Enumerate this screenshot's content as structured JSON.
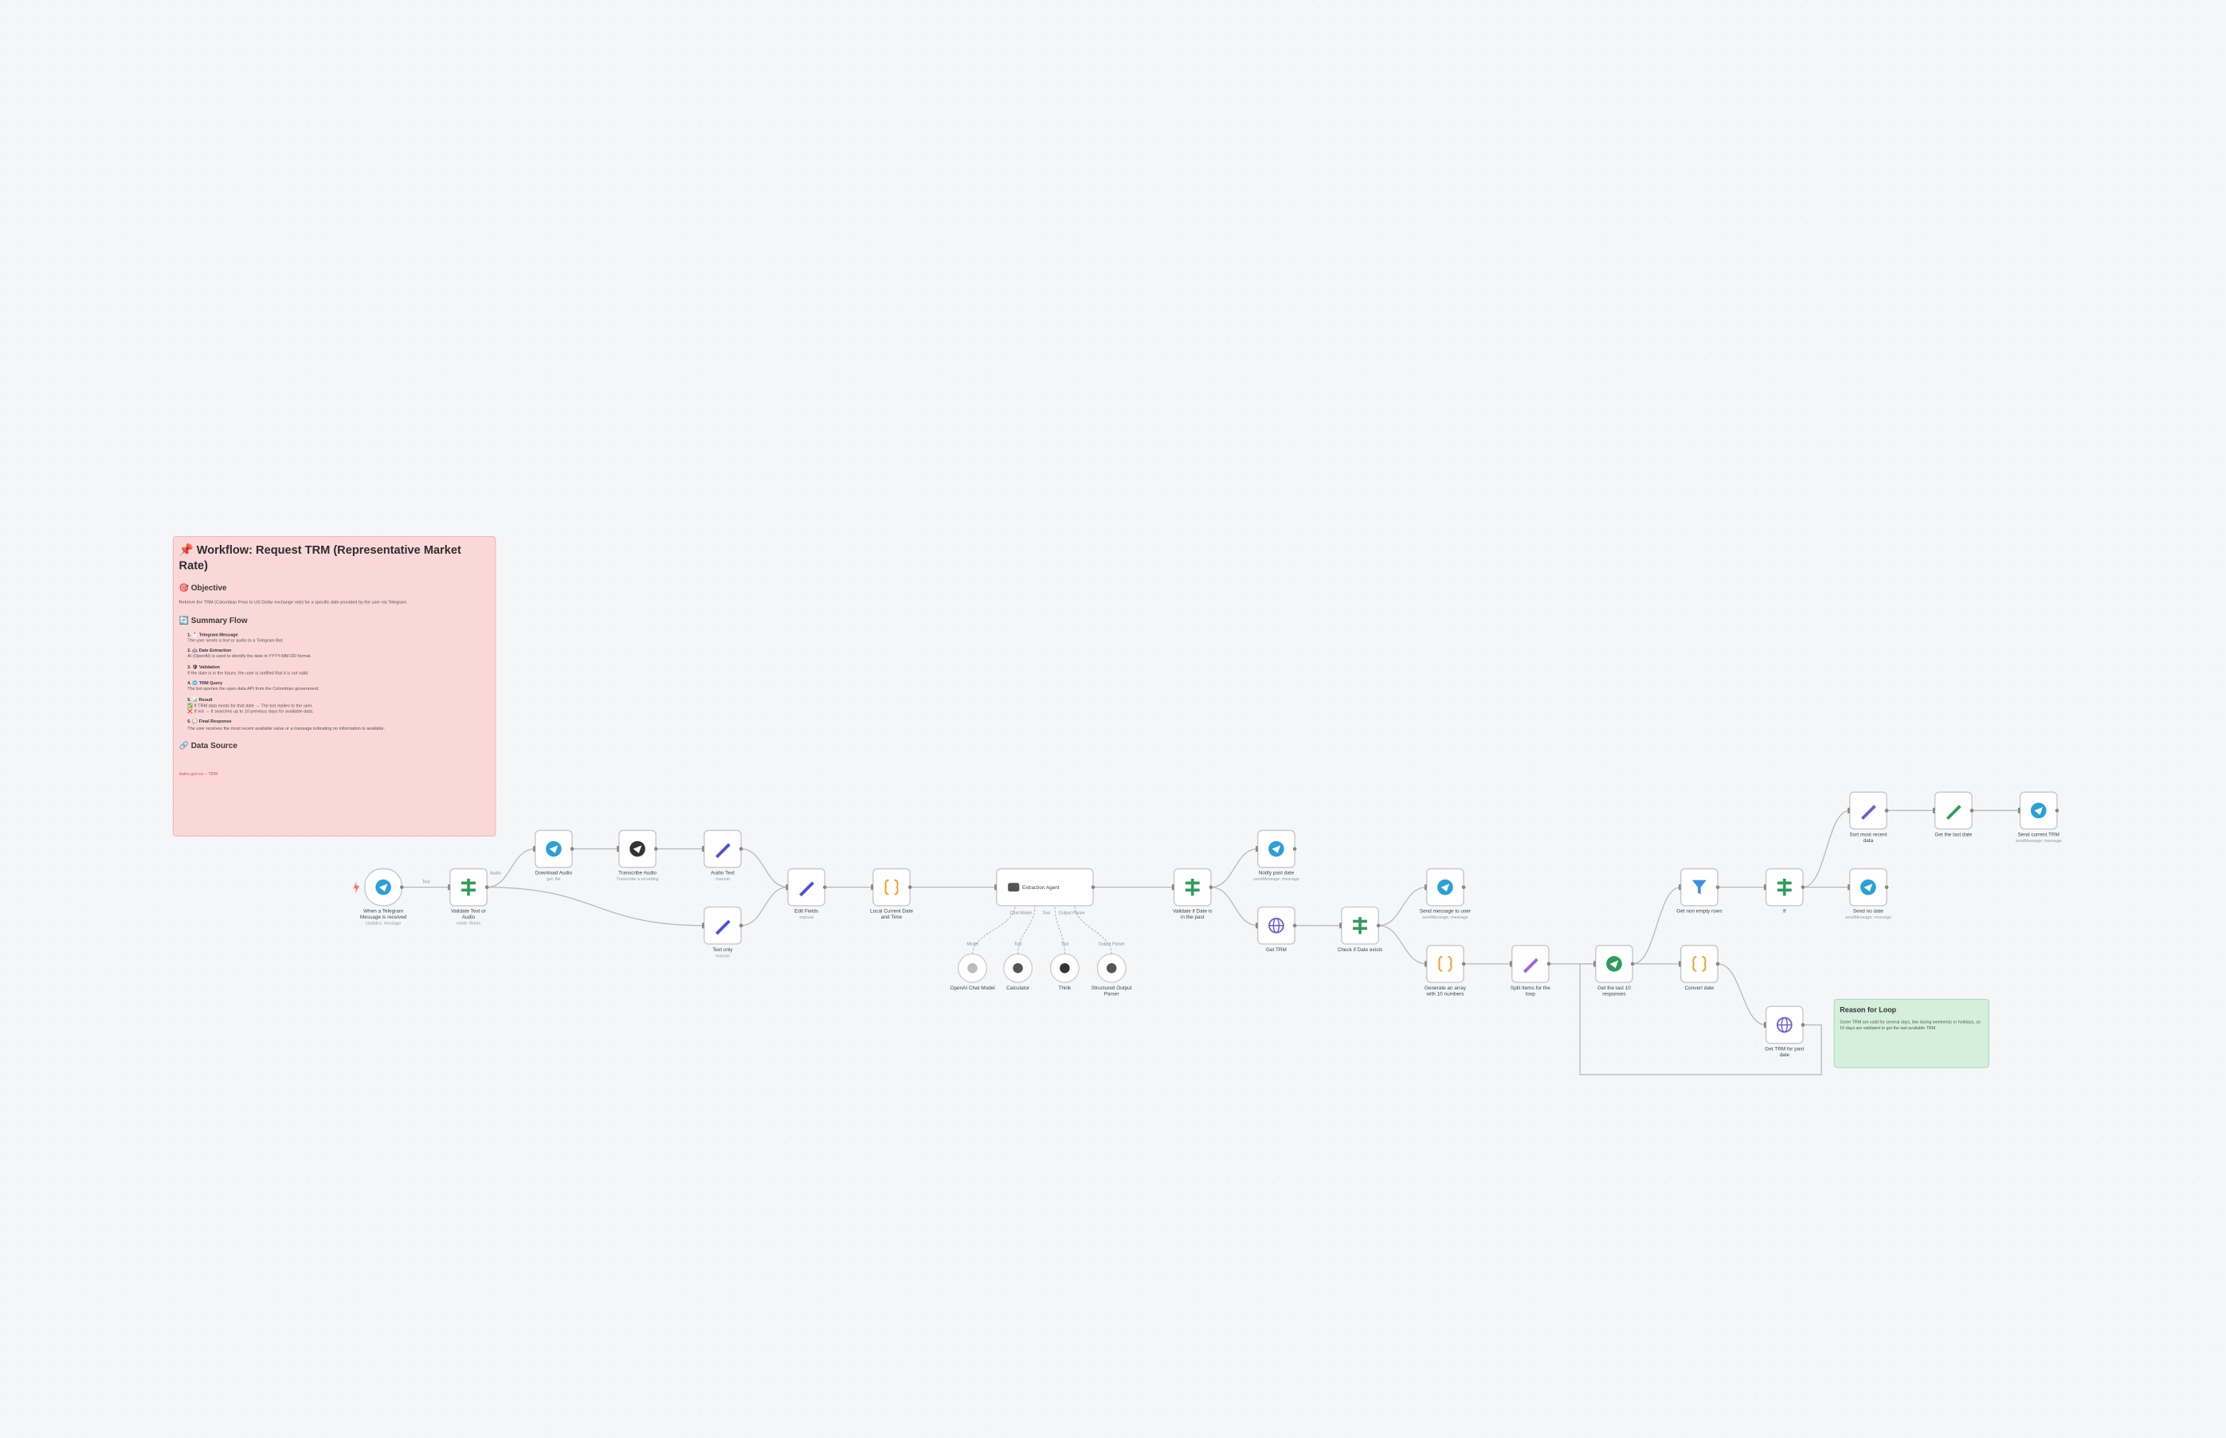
{
  "main_note": {
    "title": "📌 Workflow: Request TRM (Representative Market Rate)",
    "objective_heading": "🎯 Objective",
    "objective_text": "Retrieve the TRM (Colombian Peso to US Dollar exchange rate) for a specific date provided by the user via Telegram.",
    "summary_heading": "🔄 Summary Flow",
    "steps": [
      {
        "title": "1. 📩 Telegram Message",
        "lines": [
          "The user sends a text or audio to a Telegram Bot."
        ]
      },
      {
        "title": "2. 🤖 Date Extraction",
        "lines": [
          "AI (OpenAI) is used to identify the date in YYYY-MM-DD format."
        ]
      },
      {
        "title": "3. 🛡 Validation",
        "lines": [
          "If the date is in the future, the user is notified that it is not valid."
        ]
      },
      {
        "title": "4. 🌐 TRM Query",
        "lines": [
          "The bot queries the open data API from the Colombian government."
        ]
      },
      {
        "title": "5. 📊 Result",
        "lines": [
          "✅ If TRM data exists for that date → The bot replies to the user.",
          "❌ If not → It searches up to 10 previous days for available data."
        ]
      },
      {
        "title": "6. 💬 Final Response",
        "lines": [
          "The user receives the most recent available value or a message indicating no information is available."
        ]
      }
    ],
    "source_heading": "🔗 Data Source",
    "source_link": "datos.gov.co – TRM"
  },
  "loop_note": {
    "title": "Reason for Loop",
    "text": "Some TRM are valid for several days, like during weekends or holidays, so 10 days are validated to get the last available TRM."
  },
  "nodes": [
    {
      "label": "When a Telegram Message is received",
      "subtitle": "Updates: message"
    },
    {
      "label": "Validate Text or Audio",
      "subtitle": "mode: Rules"
    },
    {
      "label": "Download Audio",
      "subtitle": "get: file"
    },
    {
      "label": "Transcribe Audio",
      "subtitle": "Transcribe a recording"
    },
    {
      "label": "Audio Text",
      "subtitle": "manual"
    },
    {
      "label": "Text only",
      "subtitle": "manual"
    },
    {
      "label": "Edit Fields",
      "subtitle": "manual"
    },
    {
      "label": "Local Current Date and Time"
    },
    {
      "label": "Extraction Agent"
    },
    {
      "label": "OpenAI Chat Model"
    },
    {
      "label": "Calculator"
    },
    {
      "label": "Think"
    },
    {
      "label": "Structured Output Parser"
    },
    {
      "label": "Validate if Date is in the past"
    },
    {
      "label": "Notify past date",
      "subtitle": "sendMessage: message"
    },
    {
      "label": "Get TRM"
    },
    {
      "label": "Check if Date exists"
    },
    {
      "label": "Send message to user",
      "subtitle": "sendMessage: message"
    },
    {
      "label": "Generate an array with 10 numbers"
    },
    {
      "label": "Split Items for the loop"
    },
    {
      "label": "Get the last 10 responses"
    },
    {
      "label": "Get non empty rows"
    },
    {
      "label": "Convert date"
    },
    {
      "label": "If"
    },
    {
      "label": "Get TRM for past date"
    },
    {
      "label": "Sort most recent data"
    },
    {
      "label": "Get the last date"
    },
    {
      "label": "Send current TRM",
      "subtitle": "sendMessage: message"
    },
    {
      "label": "Send no date",
      "subtitle": "sendMessage: message"
    }
  ],
  "edge_labels": [
    "Text",
    "Audio",
    "Chat Model",
    "Tool",
    "Output Parser",
    "Model",
    "Tool",
    "Tool",
    "Output Parser"
  ]
}
